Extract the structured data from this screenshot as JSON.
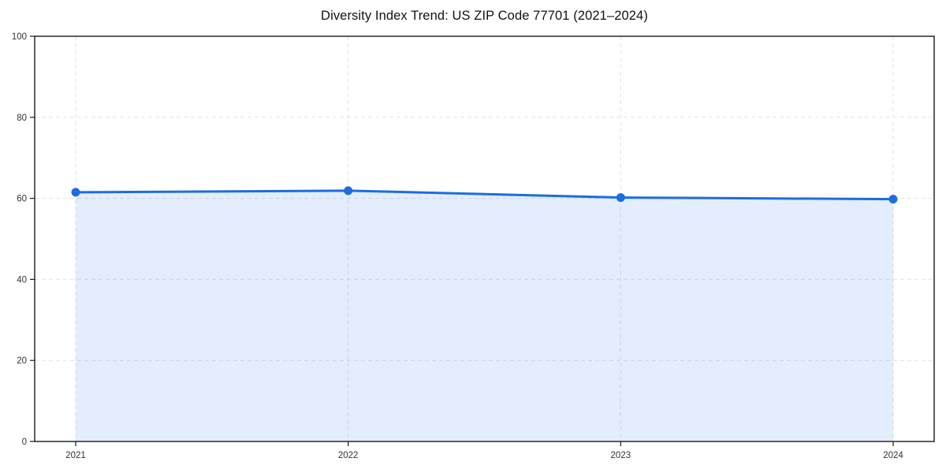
{
  "chart_data": {
    "type": "line",
    "title": "Diversity Index Trend: US ZIP Code 77701 (2021–2024)",
    "x": [
      "2021",
      "2022",
      "2023",
      "2024"
    ],
    "series": [
      {
        "name": "Diversity Index",
        "values": [
          61.5,
          61.9,
          60.2,
          59.8
        ]
      }
    ],
    "xlabel": "",
    "ylabel": "",
    "ylim": [
      0,
      100
    ],
    "yticks": [
      0,
      20,
      40,
      60,
      80,
      100
    ],
    "grid": true,
    "grid_style": "dashed",
    "legend_position": "none",
    "area_fill": true,
    "marker": "circle",
    "colors": {
      "line": "#1c6ce2",
      "marker": "#1c6ce2",
      "area_fill": "rgba(28, 108, 226, 0.12)",
      "grid": "#e2e2e2",
      "spine": "#1a1a1a",
      "tick_text": "#333333",
      "title_text": "#111111",
      "background": "#ffffff"
    }
  }
}
